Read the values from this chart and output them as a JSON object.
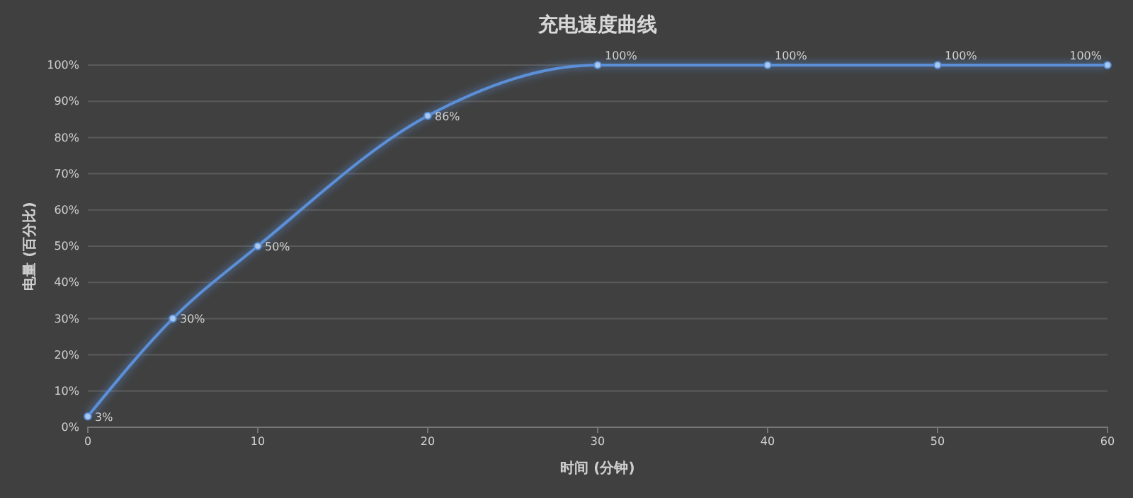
{
  "chart_data": {
    "type": "line",
    "title": "充电速度曲线",
    "xlabel": "时间 (分钟)",
    "ylabel": "电量 (百分比)",
    "x": [
      0,
      5,
      10,
      20,
      30,
      40,
      50,
      60
    ],
    "series": [
      {
        "color": "#5b8fd8",
        "values": [
          3,
          30,
          50,
          86,
          100,
          100,
          100,
          100
        ],
        "value_labels": [
          "3%",
          "30%",
          "50%",
          "86%",
          "100%",
          "100%",
          "100%",
          "100%"
        ]
      }
    ],
    "xlim": [
      0,
      60
    ],
    "xticks": [
      0,
      10,
      20,
      30,
      40,
      50,
      60
    ],
    "ylim": [
      0,
      100
    ],
    "yticks": [
      {
        "value": 0,
        "label": "0%"
      },
      {
        "value": 10,
        "label": "10%"
      },
      {
        "value": 20,
        "label": "20%"
      },
      {
        "value": 30,
        "label": "30%"
      },
      {
        "value": 40,
        "label": "40%"
      },
      {
        "value": 50,
        "label": "50%"
      },
      {
        "value": 60,
        "label": "60%"
      },
      {
        "value": 70,
        "label": "70%"
      },
      {
        "value": 80,
        "label": "80%"
      },
      {
        "value": 90,
        "label": "90%"
      },
      {
        "value": 100,
        "label": "100%"
      }
    ],
    "grid": "y",
    "marker": "circle",
    "line_style": "solid"
  }
}
